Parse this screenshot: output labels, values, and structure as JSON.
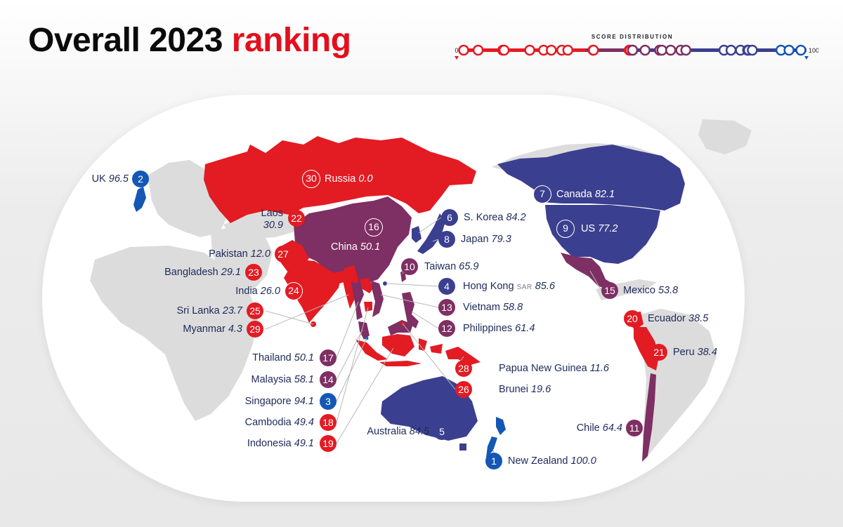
{
  "title": {
    "main": "Overall 2023",
    "accent": "ranking"
  },
  "distribution": {
    "label": "SCORE DISTRIBUTION",
    "min_label": "0",
    "max_label": "100",
    "scores": [
      0.0,
      4.3,
      11.6,
      12.0,
      19.6,
      23.7,
      26.0,
      29.1,
      30.9,
      38.4,
      38.5,
      49.1,
      49.4,
      50.1,
      50.1,
      53.8,
      58.1,
      58.8,
      61.4,
      64.4,
      65.9,
      77.2,
      79.3,
      82.1,
      84.2,
      84.5,
      85.6,
      94.1,
      96.5,
      100.0
    ]
  },
  "colors": {
    "top_tier": "#1457b5",
    "upper_tier": "#3b3f8f",
    "middle_tier": "#7e2f63",
    "lower_tier": "#e31b23",
    "land": "#dcdcdc"
  },
  "countries": [
    {
      "rank": "1",
      "name": "New Zealand",
      "score": "100.0",
      "tier": "top_tier"
    },
    {
      "rank": "2",
      "name": "UK",
      "score": "96.5",
      "tier": "top_tier"
    },
    {
      "rank": "3",
      "name": "Singapore",
      "score": "94.1",
      "tier": "top_tier"
    },
    {
      "rank": "4",
      "name": "Hong Kong",
      "suffix": "SAR",
      "score": "85.6",
      "tier": "upper_tier"
    },
    {
      "rank": "5",
      "name": "Australia",
      "score": "84.5",
      "tier": "upper_tier"
    },
    {
      "rank": "6",
      "name": "S. Korea",
      "score": "84.2",
      "tier": "upper_tier"
    },
    {
      "rank": "7",
      "name": "Canada",
      "score": "82.1",
      "tier": "upper_tier"
    },
    {
      "rank": "8",
      "name": "Japan",
      "score": "79.3",
      "tier": "upper_tier"
    },
    {
      "rank": "9",
      "name": "US",
      "score": "77.2",
      "tier": "upper_tier"
    },
    {
      "rank": "10",
      "name": "Taiwan",
      "score": "65.9",
      "tier": "middle_tier"
    },
    {
      "rank": "11",
      "name": "Chile",
      "score": "64.4",
      "tier": "middle_tier"
    },
    {
      "rank": "12",
      "name": "Philippines",
      "score": "61.4",
      "tier": "middle_tier"
    },
    {
      "rank": "13",
      "name": "Vietnam",
      "score": "58.8",
      "tier": "middle_tier"
    },
    {
      "rank": "14",
      "name": "Malaysia",
      "score": "58.1",
      "tier": "middle_tier"
    },
    {
      "rank": "15",
      "name": "Mexico",
      "score": "53.8",
      "tier": "middle_tier"
    },
    {
      "rank": "16",
      "name": "China",
      "score": "50.1",
      "tier": "middle_tier"
    },
    {
      "rank": "17",
      "name": "Thailand",
      "score": "50.1",
      "tier": "middle_tier"
    },
    {
      "rank": "18",
      "name": "Cambodia",
      "score": "49.4",
      "tier": "lower_tier"
    },
    {
      "rank": "19",
      "name": "Indonesia",
      "score": "49.1",
      "tier": "lower_tier"
    },
    {
      "rank": "20",
      "name": "Ecuador",
      "score": "38.5",
      "tier": "lower_tier"
    },
    {
      "rank": "21",
      "name": "Peru",
      "score": "38.4",
      "tier": "lower_tier"
    },
    {
      "rank": "22",
      "name": "Laos",
      "score": "30.9",
      "tier": "lower_tier"
    },
    {
      "rank": "23",
      "name": "Bangladesh",
      "score": "29.1",
      "tier": "lower_tier"
    },
    {
      "rank": "24",
      "name": "India",
      "score": "26.0",
      "tier": "lower_tier"
    },
    {
      "rank": "25",
      "name": "Sri Lanka",
      "score": "23.7",
      "tier": "lower_tier"
    },
    {
      "rank": "26",
      "name": "Brunei",
      "score": "19.6",
      "tier": "lower_tier"
    },
    {
      "rank": "27",
      "name": "Pakistan",
      "score": "12.0",
      "tier": "lower_tier"
    },
    {
      "rank": "28",
      "name": "Papua New Guinea",
      "score": "11.6",
      "tier": "lower_tier"
    },
    {
      "rank": "29",
      "name": "Myanmar",
      "score": "4.3",
      "tier": "lower_tier"
    },
    {
      "rank": "30",
      "name": "Russia",
      "score": "0.0",
      "tier": "lower_tier"
    }
  ]
}
